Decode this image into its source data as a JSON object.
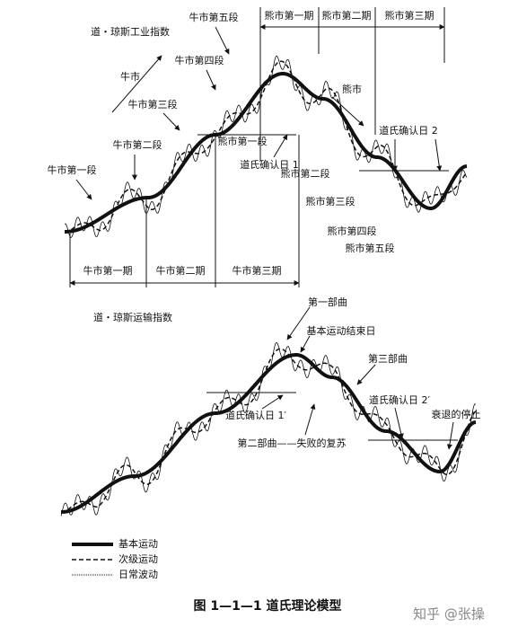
{
  "top_chart": {
    "title": "道・琼斯工业指数",
    "bear_phases": [
      "熊市第一期",
      "熊市第二期",
      "熊市第三期"
    ],
    "bull_phases": [
      "牛市第一期",
      "牛市第二期",
      "牛市第三期"
    ],
    "labels": [
      "牛市第五段",
      "牛市第四段",
      "牛市",
      "牛市第三段",
      "牛市第二段",
      "牛市第一段",
      "熊市",
      "熊市第一段",
      "道氏确认日 2",
      "道氏确认日 1",
      "熊市第二段",
      "熊市第三段",
      "熊市第四段",
      "熊市第五段"
    ]
  },
  "bottom_chart": {
    "title": "道・琼斯运输指数",
    "labels": [
      "第一部曲",
      "基本运动结束日",
      "第三部曲",
      "道氏确认日 2′",
      "衰退的停止",
      "道氏确认日 1′",
      "第二部曲——失败的复苏"
    ]
  },
  "legend": [
    "基本运动",
    "次级运动",
    "日常波动"
  ],
  "caption": "图 1—1—1   道氏理论模型",
  "watermark": "知乎 @张操"
}
